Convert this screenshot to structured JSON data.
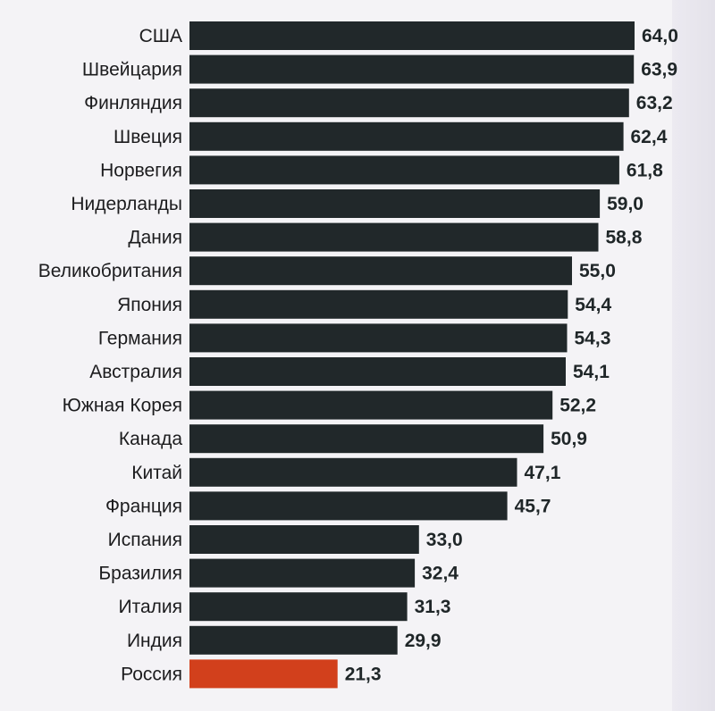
{
  "chart_data": {
    "type": "bar",
    "orientation": "horizontal",
    "categories": [
      "США",
      "Швейцария",
      "Финляндия",
      "Швеция",
      "Норвегия",
      "Нидерланды",
      "Дания",
      "Великобритания",
      "Япония",
      "Германия",
      "Австралия",
      "Южная Корея",
      "Канада",
      "Китай",
      "Франция",
      "Испания",
      "Бразилия",
      "Италия",
      "Индия",
      "Россия"
    ],
    "values": [
      64.0,
      63.9,
      63.2,
      62.4,
      61.8,
      59.0,
      58.8,
      55.0,
      54.4,
      54.3,
      54.1,
      52.2,
      50.9,
      47.1,
      45.7,
      33.0,
      32.4,
      31.3,
      29.9,
      21.3
    ],
    "value_labels": [
      "64,0",
      "63,9",
      "63,2",
      "62,4",
      "61,8",
      "59,0",
      "58,8",
      "55,0",
      "54,4",
      "54,3",
      "54,1",
      "52,2",
      "50,9",
      "47,1",
      "45,7",
      "33,0",
      "32,4",
      "31,3",
      "29,9",
      "21,3"
    ],
    "highlight_category": "Россия",
    "colors": {
      "bar": "#21282a",
      "highlight": "#d2401c",
      "highlight_label": "#d2401c",
      "label": "#1f2628"
    },
    "xlim": [
      0,
      64.0
    ],
    "grid": false,
    "legend": "none",
    "title": "",
    "xlabel": "",
    "ylabel": ""
  }
}
